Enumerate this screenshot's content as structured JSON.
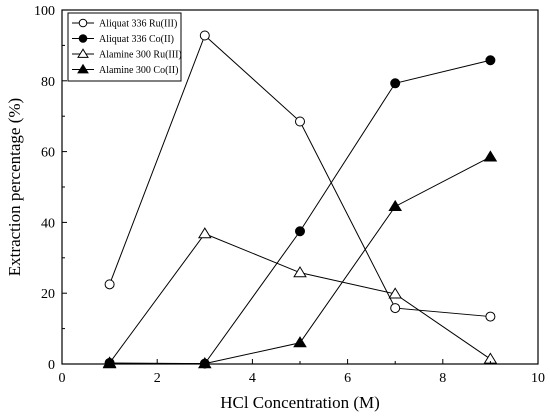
{
  "chart_data": {
    "type": "line",
    "xlabel": "HCl Concentration (M)",
    "ylabel": "Extraction percentage (%)",
    "xlim": [
      0,
      10
    ],
    "ylim": [
      0,
      100
    ],
    "xticks": [
      0,
      2,
      4,
      6,
      8,
      10
    ],
    "yticks": [
      0,
      20,
      40,
      60,
      80,
      100
    ],
    "grid": false,
    "legend_position": "top-left",
    "x": [
      1,
      3,
      5,
      7,
      9
    ],
    "series": [
      {
        "name": "Aliquat 336 Ru(III)",
        "marker": "circle-open",
        "values": [
          22.5,
          92.8,
          68.5,
          15.8,
          13.4
        ]
      },
      {
        "name": "Aliquat 336 Co(II)",
        "marker": "circle-filled",
        "values": [
          0.3,
          0.1,
          37.5,
          79.3,
          85.8
        ]
      },
      {
        "name": "Alamine 300 Ru(III)",
        "marker": "triangle-open",
        "values": [
          0.3,
          36.8,
          25.8,
          19.8,
          1.4
        ]
      },
      {
        "name": "Alamine 300 Co(II)",
        "marker": "triangle-filled",
        "values": [
          0.1,
          0.1,
          6.0,
          44.5,
          58.5
        ]
      }
    ]
  }
}
